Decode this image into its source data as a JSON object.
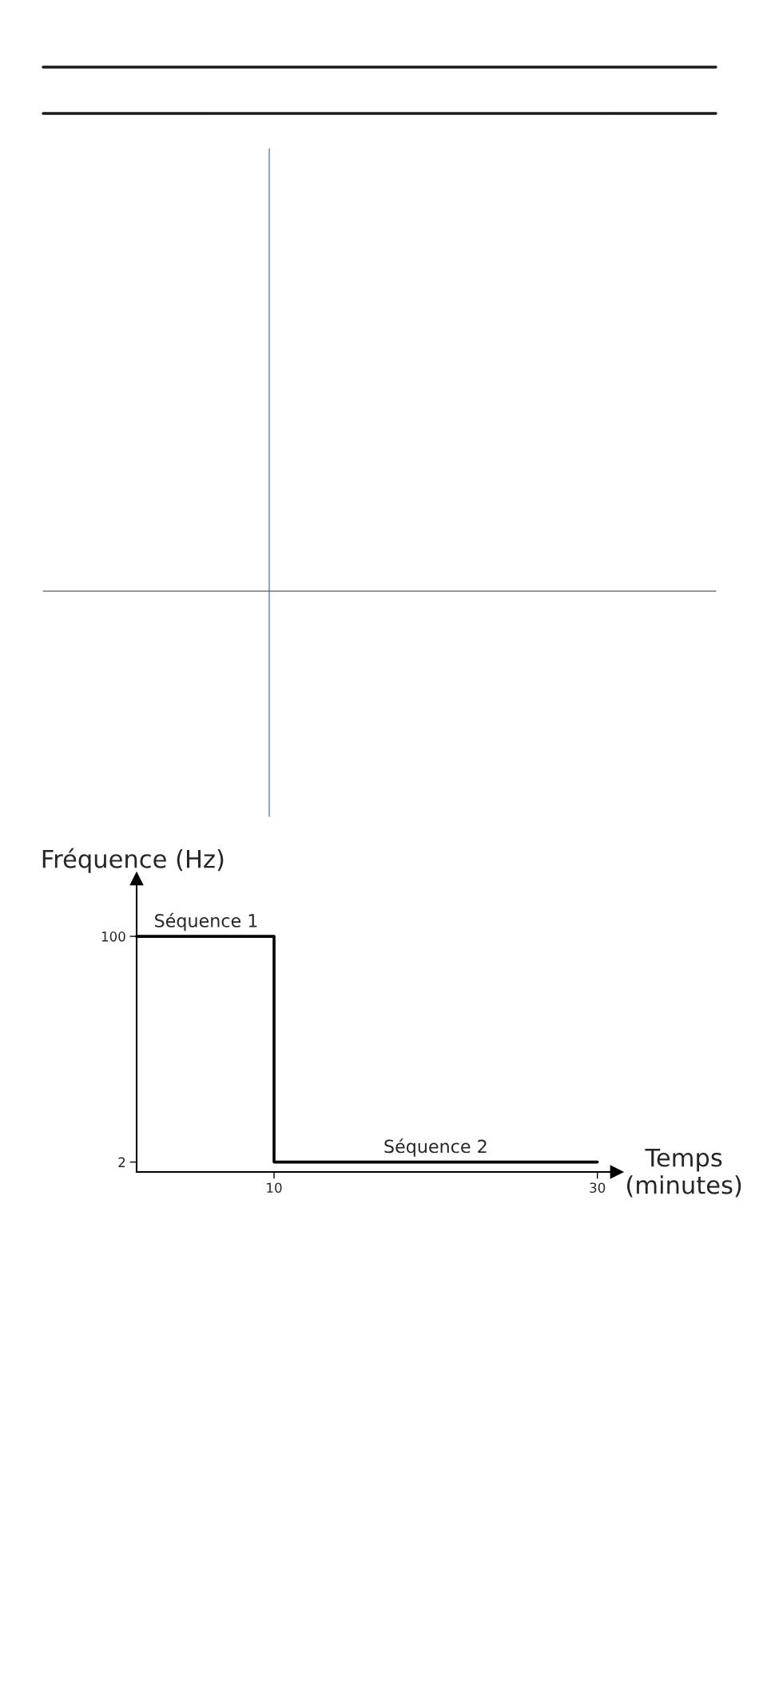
{
  "chart_data": {
    "type": "step",
    "xlabel": "Temps\n(minutes)",
    "ylabel": "Fréquence (Hz)",
    "x": [
      1.5,
      10,
      30
    ],
    "values": [
      100,
      2,
      2
    ],
    "color": "#000000",
    "xlim": [
      1.5,
      31.2
    ],
    "ylim": [
      -2.3,
      125
    ],
    "xticks": [
      10,
      30
    ],
    "yticks": [
      2,
      100
    ],
    "grid": false,
    "legend": false,
    "marker": "none",
    "line_style": "solid",
    "annotations": [
      {
        "text": "Séquence 1",
        "x": 5.8,
        "y": 100
      },
      {
        "text": "Séquence 2",
        "x": 20,
        "y": 2
      }
    ]
  }
}
